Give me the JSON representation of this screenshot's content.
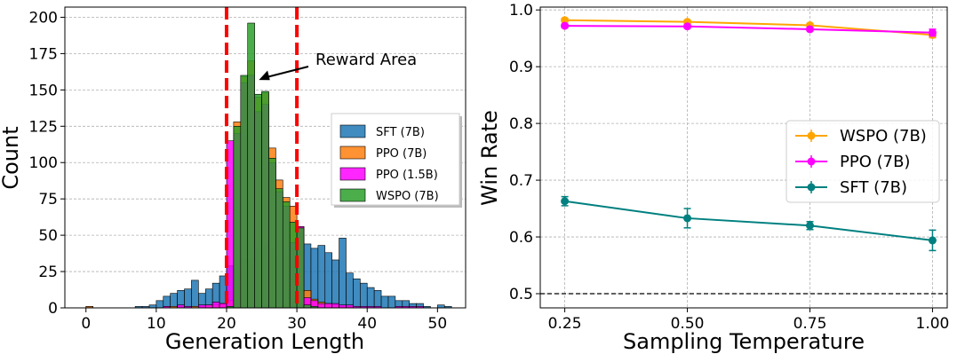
{
  "chart_data": [
    {
      "type": "histogram",
      "xlabel": "Generation Length",
      "ylabel": "Count",
      "xlim": [
        -3,
        54
      ],
      "ylim": [
        0,
        207
      ],
      "xticks": [
        "0",
        "10",
        "20",
        "30",
        "40",
        "50"
      ],
      "yticks": [
        "0",
        "25",
        "50",
        "75",
        "100",
        "125",
        "150",
        "175",
        "200"
      ],
      "grid": "horizontal-dashed",
      "legend_position": "center-right",
      "bin_width": 1,
      "series": [
        {
          "name": "SFT (7B)",
          "color": "#1f77b4",
          "points": [
            [
              0,
              1
            ],
            [
              7,
              1
            ],
            [
              8,
              1
            ],
            [
              9,
              2
            ],
            [
              10,
              5
            ],
            [
              11,
              8
            ],
            [
              12,
              10
            ],
            [
              13,
              12
            ],
            [
              14,
              13
            ],
            [
              15,
              19
            ],
            [
              16,
              10
            ],
            [
              17,
              13
            ],
            [
              18,
              17
            ],
            [
              19,
              22
            ],
            [
              20,
              29
            ],
            [
              21,
              27
            ],
            [
              22,
              33
            ],
            [
              23,
              33
            ],
            [
              24,
              40
            ],
            [
              25,
              43
            ],
            [
              26,
              40
            ],
            [
              27,
              46
            ],
            [
              28,
              36
            ],
            [
              29,
              40
            ],
            [
              30,
              51
            ],
            [
              31,
              44
            ],
            [
              32,
              41
            ],
            [
              33,
              43
            ],
            [
              34,
              38
            ],
            [
              35,
              33
            ],
            [
              36,
              48
            ],
            [
              37,
              24
            ],
            [
              38,
              20
            ],
            [
              39,
              17
            ],
            [
              40,
              14
            ],
            [
              41,
              12
            ],
            [
              42,
              8
            ],
            [
              43,
              8
            ],
            [
              44,
              5
            ],
            [
              45,
              5
            ],
            [
              46,
              3
            ],
            [
              47,
              3
            ],
            [
              48,
              1
            ],
            [
              50,
              2
            ],
            [
              51,
              1
            ]
          ]
        },
        {
          "name": "PPO (7B)",
          "color": "#ff7f0e",
          "points": [
            [
              0,
              1
            ],
            [
              11,
              1
            ],
            [
              12,
              1
            ],
            [
              13,
              1
            ],
            [
              15,
              1
            ],
            [
              16,
              1
            ],
            [
              17,
              2
            ],
            [
              18,
              2
            ],
            [
              19,
              3
            ],
            [
              20,
              5
            ],
            [
              21,
              128
            ],
            [
              22,
              159
            ],
            [
              23,
              170
            ],
            [
              24,
              145
            ],
            [
              25,
              148
            ],
            [
              26,
              110
            ],
            [
              27,
              88
            ],
            [
              28,
              76
            ],
            [
              29,
              70
            ],
            [
              30,
              56
            ],
            [
              31,
              12
            ],
            [
              32,
              6
            ],
            [
              33,
              4
            ],
            [
              34,
              3
            ],
            [
              35,
              2
            ],
            [
              36,
              1
            ],
            [
              37,
              1
            ]
          ]
        },
        {
          "name": "PPO (1.5B)",
          "color": "#ff00ff",
          "points": [
            [
              11,
              1
            ],
            [
              13,
              2
            ],
            [
              14,
              1
            ],
            [
              16,
              2
            ],
            [
              17,
              2
            ],
            [
              18,
              4
            ],
            [
              19,
              3
            ],
            [
              20,
              115
            ],
            [
              21,
              120
            ],
            [
              22,
              155
            ],
            [
              23,
              160
            ],
            [
              24,
              135
            ],
            [
              25,
              140
            ],
            [
              26,
              100
            ],
            [
              27,
              80
            ],
            [
              28,
              70
            ],
            [
              29,
              45
            ],
            [
              30,
              56
            ],
            [
              31,
              7
            ],
            [
              32,
              5
            ],
            [
              33,
              3
            ],
            [
              34,
              3
            ],
            [
              35,
              3
            ],
            [
              36,
              2
            ],
            [
              37,
              2
            ],
            [
              38,
              1
            ],
            [
              39,
              1
            ],
            [
              40,
              1
            ],
            [
              41,
              1
            ],
            [
              44,
              1
            ],
            [
              45,
              1
            ],
            [
              46,
              1
            ],
            [
              47,
              1
            ]
          ]
        },
        {
          "name": "WSPO (7B)",
          "color": "#2ca02c",
          "points": [
            [
              20,
              1
            ],
            [
              21,
              125
            ],
            [
              22,
              160
            ],
            [
              23,
              196
            ],
            [
              24,
              147
            ],
            [
              25,
              149
            ],
            [
              26,
              103
            ],
            [
              27,
              82
            ],
            [
              28,
              73
            ],
            [
              29,
              59
            ],
            [
              30,
              55
            ],
            [
              31,
              2
            ],
            [
              32,
              1
            ]
          ]
        }
      ],
      "reference_lines": [
        20,
        30
      ],
      "annotation": "Reward Area"
    },
    {
      "type": "line",
      "xlabel": "Sampling Temperature",
      "ylabel": "Win Rate",
      "x": [
        0.25,
        0.5,
        0.75,
        1.0
      ],
      "xticks": [
        "0.25",
        "0.50",
        "0.75",
        "1.00"
      ],
      "yticks": [
        "0.5",
        "0.6",
        "0.7",
        "0.8",
        "0.9",
        "1.0"
      ],
      "xlim": [
        0.2,
        1.03
      ],
      "ylim": [
        0.475,
        1.005
      ],
      "grid": "dashed",
      "legend_position": "center-right",
      "baseline": 0.5,
      "series": [
        {
          "name": "WSPO (7B)",
          "color": "#ffa500",
          "values": [
            0.982,
            0.979,
            0.973,
            0.956
          ],
          "errors": [
            0.003,
            0.003,
            0.003,
            0.005
          ]
        },
        {
          "name": "PPO (7B)",
          "color": "#ff00ff",
          "values": [
            0.972,
            0.971,
            0.966,
            0.96
          ],
          "errors": [
            0.003,
            0.003,
            0.003,
            0.006
          ]
        },
        {
          "name": "SFT (7B)",
          "color": "#008080",
          "values": [
            0.663,
            0.633,
            0.62,
            0.594
          ],
          "errors": [
            0.008,
            0.017,
            0.007,
            0.018
          ]
        }
      ]
    }
  ]
}
